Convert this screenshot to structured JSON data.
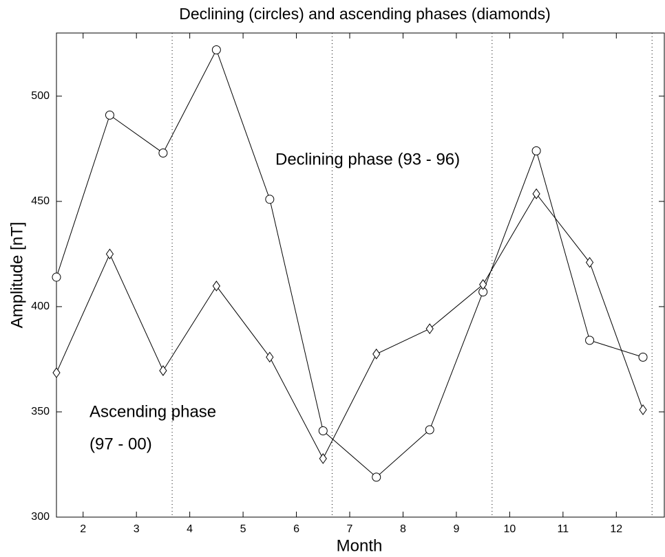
{
  "chart_data": {
    "type": "line",
    "title": "Declining (circles) and ascending phases (diamonds)",
    "x_label": "Month",
    "y_label": "Amplitude  [nT]",
    "x": [
      1.5,
      2.5,
      3.5,
      4.5,
      5.5,
      6.5,
      7.5,
      8.5,
      9.5,
      10.5,
      11.5,
      12.5
    ],
    "series": [
      {
        "marker": "circle",
        "color": "#000000",
        "values": [
          414,
          491,
          473,
          522,
          451,
          341,
          319,
          341.5,
          407,
          474,
          384,
          376
        ]
      },
      {
        "marker": "diamond",
        "color": "#000000",
        "values": [
          368.6,
          425,
          369.6,
          409.8,
          376,
          327.8,
          377.5,
          389.5,
          410.5,
          453.6,
          421,
          351
        ]
      }
    ],
    "xlim": [
      1.5,
      12.9
    ],
    "ylim": [
      300,
      530
    ],
    "xticks": [
      2,
      3,
      4,
      5,
      6,
      7,
      8,
      9,
      10,
      11,
      12
    ],
    "yticks": [
      300,
      350,
      400,
      450,
      500
    ],
    "vlines": [
      3.67,
      6.67,
      9.67,
      12.67
    ],
    "annotations": [
      "Declining phase (93 - 96)",
      "Ascending phase",
      "(97 - 00)"
    ],
    "grid": false
  }
}
